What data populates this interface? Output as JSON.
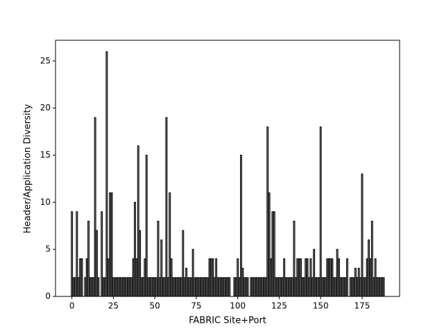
{
  "chart_data": {
    "type": "bar",
    "x_label": "FABRIC Site+Port",
    "y_label": "Header/Application Diversity",
    "x": [
      0,
      1,
      2,
      3,
      4,
      5,
      6,
      7,
      8,
      9,
      10,
      11,
      12,
      13,
      14,
      15,
      16,
      17,
      18,
      19,
      20,
      21,
      22,
      23,
      24,
      25,
      26,
      27,
      28,
      29,
      30,
      31,
      32,
      33,
      34,
      35,
      36,
      37,
      38,
      39,
      40,
      41,
      42,
      43,
      44,
      45,
      46,
      47,
      48,
      49,
      50,
      51,
      52,
      53,
      54,
      55,
      56,
      57,
      58,
      59,
      60,
      61,
      62,
      63,
      64,
      65,
      66,
      67,
      68,
      69,
      70,
      71,
      72,
      73,
      74,
      75,
      76,
      77,
      78,
      79,
      80,
      81,
      82,
      83,
      84,
      85,
      86,
      87,
      88,
      89,
      90,
      91,
      92,
      93,
      94,
      95,
      96,
      97,
      98,
      99,
      100,
      101,
      102,
      103,
      104,
      105,
      106,
      107,
      108,
      109,
      110,
      111,
      112,
      113,
      114,
      115,
      116,
      117,
      118,
      119,
      120,
      121,
      122,
      123,
      124,
      125,
      126,
      127,
      128,
      129,
      130,
      131,
      132,
      133,
      134,
      135,
      136,
      137,
      138,
      139,
      140,
      141,
      142,
      143,
      144,
      145,
      146,
      147,
      148,
      149,
      150,
      151,
      152,
      153,
      154,
      155,
      156,
      157,
      158,
      159,
      160,
      161,
      162,
      163,
      164,
      165,
      166,
      167,
      168,
      169,
      170,
      171,
      172,
      173,
      174,
      175,
      176,
      177,
      178,
      179,
      180,
      181,
      182,
      183,
      184,
      185,
      186,
      187,
      188
    ],
    "values": [
      9,
      2,
      2,
      9,
      2,
      4,
      4,
      0,
      2,
      4,
      8,
      2,
      2,
      2,
      19,
      7,
      2,
      0,
      9,
      2,
      2,
      26,
      4,
      11,
      11,
      2,
      2,
      2,
      2,
      2,
      2,
      2,
      2,
      2,
      2,
      2,
      2,
      4,
      10,
      4,
      16,
      7,
      2,
      2,
      4,
      15,
      2,
      2,
      2,
      2,
      2,
      2,
      8,
      2,
      6,
      2,
      2,
      19,
      2,
      11,
      4,
      2,
      2,
      2,
      2,
      2,
      2,
      7,
      2,
      3,
      2,
      2,
      2,
      5,
      2,
      2,
      2,
      2,
      2,
      2,
      2,
      2,
      2,
      4,
      4,
      4,
      2,
      4,
      2,
      2,
      2,
      2,
      2,
      2,
      2,
      2,
      0,
      0,
      2,
      2,
      4,
      2,
      15,
      3,
      2,
      2,
      2,
      0,
      2,
      2,
      2,
      2,
      2,
      2,
      2,
      2,
      2,
      2,
      18,
      11,
      4,
      9,
      9,
      2,
      2,
      2,
      2,
      2,
      4,
      2,
      2,
      2,
      2,
      2,
      8,
      2,
      4,
      4,
      4,
      2,
      2,
      4,
      4,
      2,
      4,
      2,
      5,
      2,
      2,
      2,
      18,
      2,
      2,
      2,
      4,
      4,
      4,
      4,
      2,
      2,
      5,
      4,
      2,
      2,
      2,
      2,
      4,
      0,
      2,
      2,
      2,
      3,
      2,
      3,
      2,
      13,
      2,
      2,
      4,
      6,
      4,
      8,
      2,
      4,
      2,
      2,
      2,
      2,
      2
    ],
    "color": "#808080",
    "edgecolor": "#000000",
    "xlim": [
      -9.9,
      197.6
    ],
    "ylim": [
      0,
      27.2
    ],
    "xticks": [
      0,
      25,
      50,
      75,
      100,
      125,
      150,
      175
    ],
    "yticks": [
      0,
      5,
      10,
      15,
      20,
      25
    ],
    "grid": false
  }
}
